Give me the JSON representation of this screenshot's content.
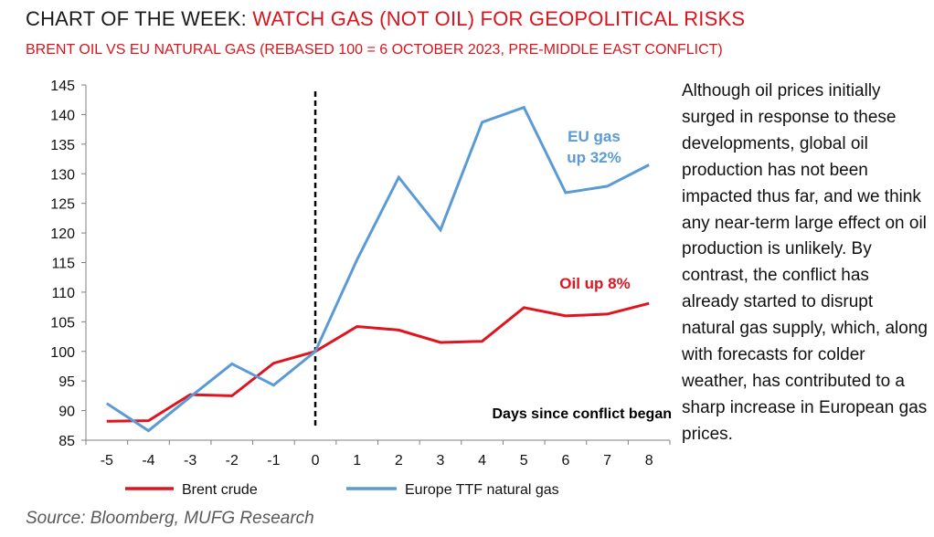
{
  "header": {
    "title_prefix": "CHART OF THE WEEK: ",
    "title_highlight": "WATCH GAS (NOT OIL) FOR GEOPOLITICAL RISKS",
    "subtitle": "BRENT OIL VS EU NATURAL GAS (REBASED 100 = 6 OCTOBER 2023, PRE-MIDDLE EAST CONFLICT)"
  },
  "commentary": "Although oil prices initially surged in response to these developments, global oil production has not been impacted thus far, and we think any near-term large effect on oil production is unlikely. By contrast, the conflict has already started to disrupt natural gas supply, which, along with forecasts for colder weather, has contributed to a sharp increase in European gas prices.",
  "source": "Source: Bloomberg, MUFG Research",
  "colors": {
    "brent": "#e0141e",
    "gas": "#5b9bd5",
    "accent_red": "#d9141d"
  },
  "chart_data": {
    "type": "line",
    "x": [
      -5,
      -4,
      -3,
      -2,
      -1,
      0,
      1,
      2,
      3,
      4,
      5,
      6,
      7,
      8
    ],
    "xlabel": "Days since conflict began",
    "ylabel": "",
    "ylim": [
      85,
      145
    ],
    "yticks": [
      85,
      90,
      95,
      100,
      105,
      110,
      115,
      120,
      125,
      130,
      135,
      140,
      145
    ],
    "grid": false,
    "legend_position": "bottom",
    "vline_x": 0,
    "series": [
      {
        "name": "Brent crude",
        "color": "#e0141e",
        "values": [
          88.2,
          88.3,
          92.7,
          92.5,
          98.0,
          100.0,
          104.2,
          103.6,
          101.5,
          101.7,
          107.4,
          106.0,
          106.3,
          108.1
        ]
      },
      {
        "name": "Europe TTF natural gas",
        "color": "#5b9bd5",
        "values": [
          91.2,
          86.6,
          92.3,
          97.9,
          94.3,
          100.0,
          115.5,
          129.4,
          120.5,
          138.7,
          141.2,
          126.8,
          127.9,
          131.5
        ]
      }
    ],
    "annotations": [
      {
        "text_lines": [
          "EU gas",
          "up 32%"
        ],
        "color": "#5b9bd5"
      },
      {
        "text_lines": [
          "Oil up 8%"
        ],
        "color": "#e0141e"
      }
    ]
  }
}
